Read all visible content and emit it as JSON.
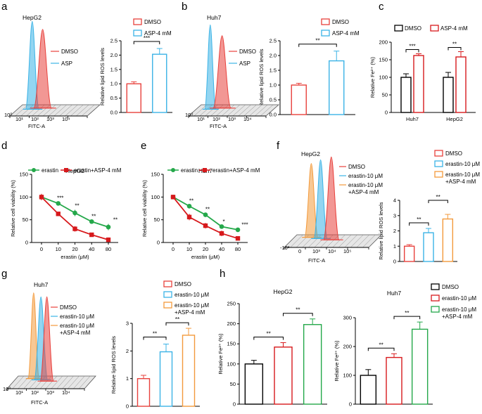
{
  "panels": {
    "a": {
      "letter": "a",
      "flow_title": "HepG2",
      "flow_xlabel": "FITC-A",
      "flow_legend": [
        "DMSO",
        "ASP"
      ],
      "flow_ticks": [
        "10⁰",
        "10¹",
        "10²",
        "10³",
        "10⁴"
      ],
      "bar_legend": [
        "DMSO",
        "ASP-4 mM"
      ],
      "sig": "***"
    },
    "b": {
      "letter": "b",
      "flow_title": "Huh7",
      "flow_xlabel": "FITC-A",
      "flow_legend": [
        "DMSO",
        "ASP"
      ],
      "flow_ticks": [
        "10⁰",
        "10¹",
        "10²",
        "10³",
        "10⁴"
      ],
      "bar_legend": [
        "DMSO",
        "ASP-4 mM"
      ],
      "sig": "**"
    },
    "c": {
      "letter": "c",
      "legend": [
        "DMSO",
        "ASP-4 mM"
      ],
      "sig": [
        "***",
        "**"
      ]
    },
    "d": {
      "letter": "d",
      "title": "HepG2",
      "legend": [
        "erastin",
        "erastin+ASP-4 mM"
      ],
      "sig": [
        "***",
        "**",
        "**",
        "**"
      ]
    },
    "e": {
      "letter": "e",
      "title": "Huh7",
      "legend": [
        "erastin",
        "erastin+ASP-4 mM"
      ],
      "sig": [
        "**",
        "**",
        "*",
        "***"
      ]
    },
    "f": {
      "letter": "f",
      "flow_title": "HepG2",
      "flow_xlabel": "FITC-A",
      "flow_legend": [
        "DMSO",
        "erastin-10 μM",
        "erastin-10 μM",
        "+ASP-4 mM"
      ],
      "flow_ticks": [
        "-10³",
        "0",
        "10³",
        "10⁴",
        "10⁵"
      ],
      "bar_legend": [
        "DMSO",
        "erastin-10 μM",
        "erastin-10 μM",
        "+ASP-4 mM"
      ],
      "sig": [
        "**",
        "**"
      ]
    },
    "g": {
      "letter": "g",
      "flow_title": "Huh7",
      "flow_xlabel": "FITC-A",
      "flow_legend": [
        "DMSO",
        "erastin-10 μM",
        "erastin-10 μM",
        "+ASP-4 mM"
      ],
      "flow_ticks": [
        "10⁰",
        "10¹",
        "10²",
        "10³",
        "10⁴"
      ],
      "bar_legend": [
        "DMSO",
        "erastin-10 μM",
        "erastin-10 μM",
        "+ASP-4 mM"
      ],
      "sig": [
        "**",
        "**"
      ]
    },
    "h": {
      "letter": "h",
      "legend": [
        "DMSO",
        "erastin-10 μM",
        "erastin-10 μM",
        "+ASP-4 mM"
      ],
      "titles": [
        "HepG2",
        "Huh7"
      ],
      "sig": [
        "**",
        "**"
      ]
    }
  },
  "colors": {
    "red": "#e8413c",
    "blue": "#3bb3e6",
    "orange": "#f39a3c",
    "green": "#24a84a",
    "darkred": "#d7191c",
    "black": "#000000"
  },
  "chart_data": [
    {
      "id": "a_bar",
      "type": "bar",
      "categories": [
        "DMSO",
        "ASP-4 mM"
      ],
      "values": [
        1.0,
        2.03
      ],
      "errors": [
        0.07,
        0.2
      ],
      "ylabel": "Relative lipid ROS levels",
      "ylim": [
        0,
        2.5
      ],
      "yticks": [
        "0.0",
        "0.5",
        "1.0",
        "1.5",
        "2.0",
        "2.5"
      ]
    },
    {
      "id": "b_bar",
      "type": "bar",
      "categories": [
        "DMSO",
        "ASP-4 mM"
      ],
      "values": [
        1.0,
        1.82
      ],
      "errors": [
        0.06,
        0.33
      ],
      "ylabel": "Relative lipid ROS levels",
      "ylim": [
        0,
        2.5
      ],
      "yticks": [
        "0.0",
        "0.5",
        "1.0",
        "1.5",
        "2.0",
        "2.5"
      ]
    },
    {
      "id": "c_bar",
      "type": "bar",
      "categories": [
        "Huh7",
        "HepG2"
      ],
      "series": [
        {
          "name": "DMSO",
          "values": [
            100,
            100
          ],
          "errors": [
            10,
            14
          ]
        },
        {
          "name": "ASP-4 mM",
          "values": [
            162,
            158
          ],
          "errors": [
            5,
            15
          ]
        }
      ],
      "ylabel": "Relative Fe²⁺ (%)",
      "ylim": [
        0,
        200
      ],
      "yticks": [
        "0",
        "50",
        "100",
        "150",
        "200"
      ]
    },
    {
      "id": "d_line",
      "type": "line",
      "x": [
        0,
        10,
        20,
        40,
        80
      ],
      "xticks": [
        "0",
        "10",
        "20",
        "40",
        "80"
      ],
      "series": [
        {
          "name": "erastin",
          "values": [
            100,
            86,
            65,
            46,
            34
          ],
          "errors": [
            6,
            3,
            7,
            3,
            7
          ]
        },
        {
          "name": "erastin+ASP-4 mM",
          "values": [
            100,
            63,
            30,
            17,
            6
          ],
          "errors": [
            7,
            4,
            6,
            3,
            5
          ]
        }
      ],
      "title": "HepG2",
      "xlabel": "erastin (μM)",
      "ylabel": "Relative cell viability (%)",
      "ylim": [
        0,
        150
      ],
      "yticks": [
        "0",
        "50",
        "100",
        "150"
      ]
    },
    {
      "id": "e_line",
      "type": "line",
      "x": [
        0,
        10,
        20,
        40,
        80
      ],
      "xticks": [
        "0",
        "10",
        "20",
        "40",
        "80"
      ],
      "series": [
        {
          "name": "erastin",
          "values": [
            100,
            80,
            61,
            35,
            28
          ],
          "errors": [
            3,
            3,
            3,
            2,
            2
          ]
        },
        {
          "name": "erastin+ASP-4 mM",
          "values": [
            100,
            56,
            37,
            20,
            9
          ],
          "errors": [
            3,
            7,
            6,
            6,
            2
          ]
        }
      ],
      "title": "Huh7",
      "xlabel": "erastin (μM)",
      "ylabel": "Relative cell viability (%)",
      "ylim": [
        0,
        150
      ],
      "yticks": [
        "0",
        "50",
        "100",
        "150"
      ]
    },
    {
      "id": "f_bar",
      "type": "bar",
      "categories": [
        "DMSO",
        "erastin-10 μM",
        "erastin-10 μM +ASP-4 mM"
      ],
      "values": [
        1.0,
        1.88,
        2.78
      ],
      "errors": [
        0.1,
        0.28,
        0.3
      ],
      "ylabel": "Relative lipid ROS levels",
      "ylim": [
        0,
        4
      ],
      "yticks": [
        "0",
        "1",
        "2",
        "3",
        "4"
      ]
    },
    {
      "id": "g_bar",
      "type": "bar",
      "categories": [
        "DMSO",
        "erastin-10 μM",
        "erastin-10 μM +ASP-4 mM"
      ],
      "values": [
        1.0,
        1.97,
        2.57
      ],
      "errors": [
        0.12,
        0.28,
        0.25
      ],
      "ylabel": "Relative lipid ROS levels",
      "ylim": [
        0,
        3
      ],
      "yticks": [
        "0",
        "1",
        "2",
        "3"
      ]
    },
    {
      "id": "h1_bar",
      "type": "bar",
      "categories": [
        "DMSO",
        "erastin-10 μM",
        "erastin-10 μM +ASP-4 mM"
      ],
      "values": [
        100,
        142,
        198
      ],
      "errors": [
        9,
        11,
        14
      ],
      "title": "HepG2",
      "ylabel": "Relative Fe²⁺ (%)",
      "ylim": [
        0,
        250
      ],
      "yticks": [
        "0",
        "50",
        "100",
        "150",
        "200",
        "250"
      ]
    },
    {
      "id": "h2_bar",
      "type": "bar",
      "categories": [
        "DMSO",
        "erastin-10 μM",
        "erastin-10 μM +ASP-4 mM"
      ],
      "values": [
        100,
        162,
        260
      ],
      "errors": [
        20,
        13,
        25
      ],
      "title": "Huh7",
      "ylabel": "Relative Fe²⁺ (%)",
      "ylim": [
        0,
        300
      ],
      "yticks": [
        "0",
        "100",
        "200",
        "300"
      ]
    }
  ]
}
